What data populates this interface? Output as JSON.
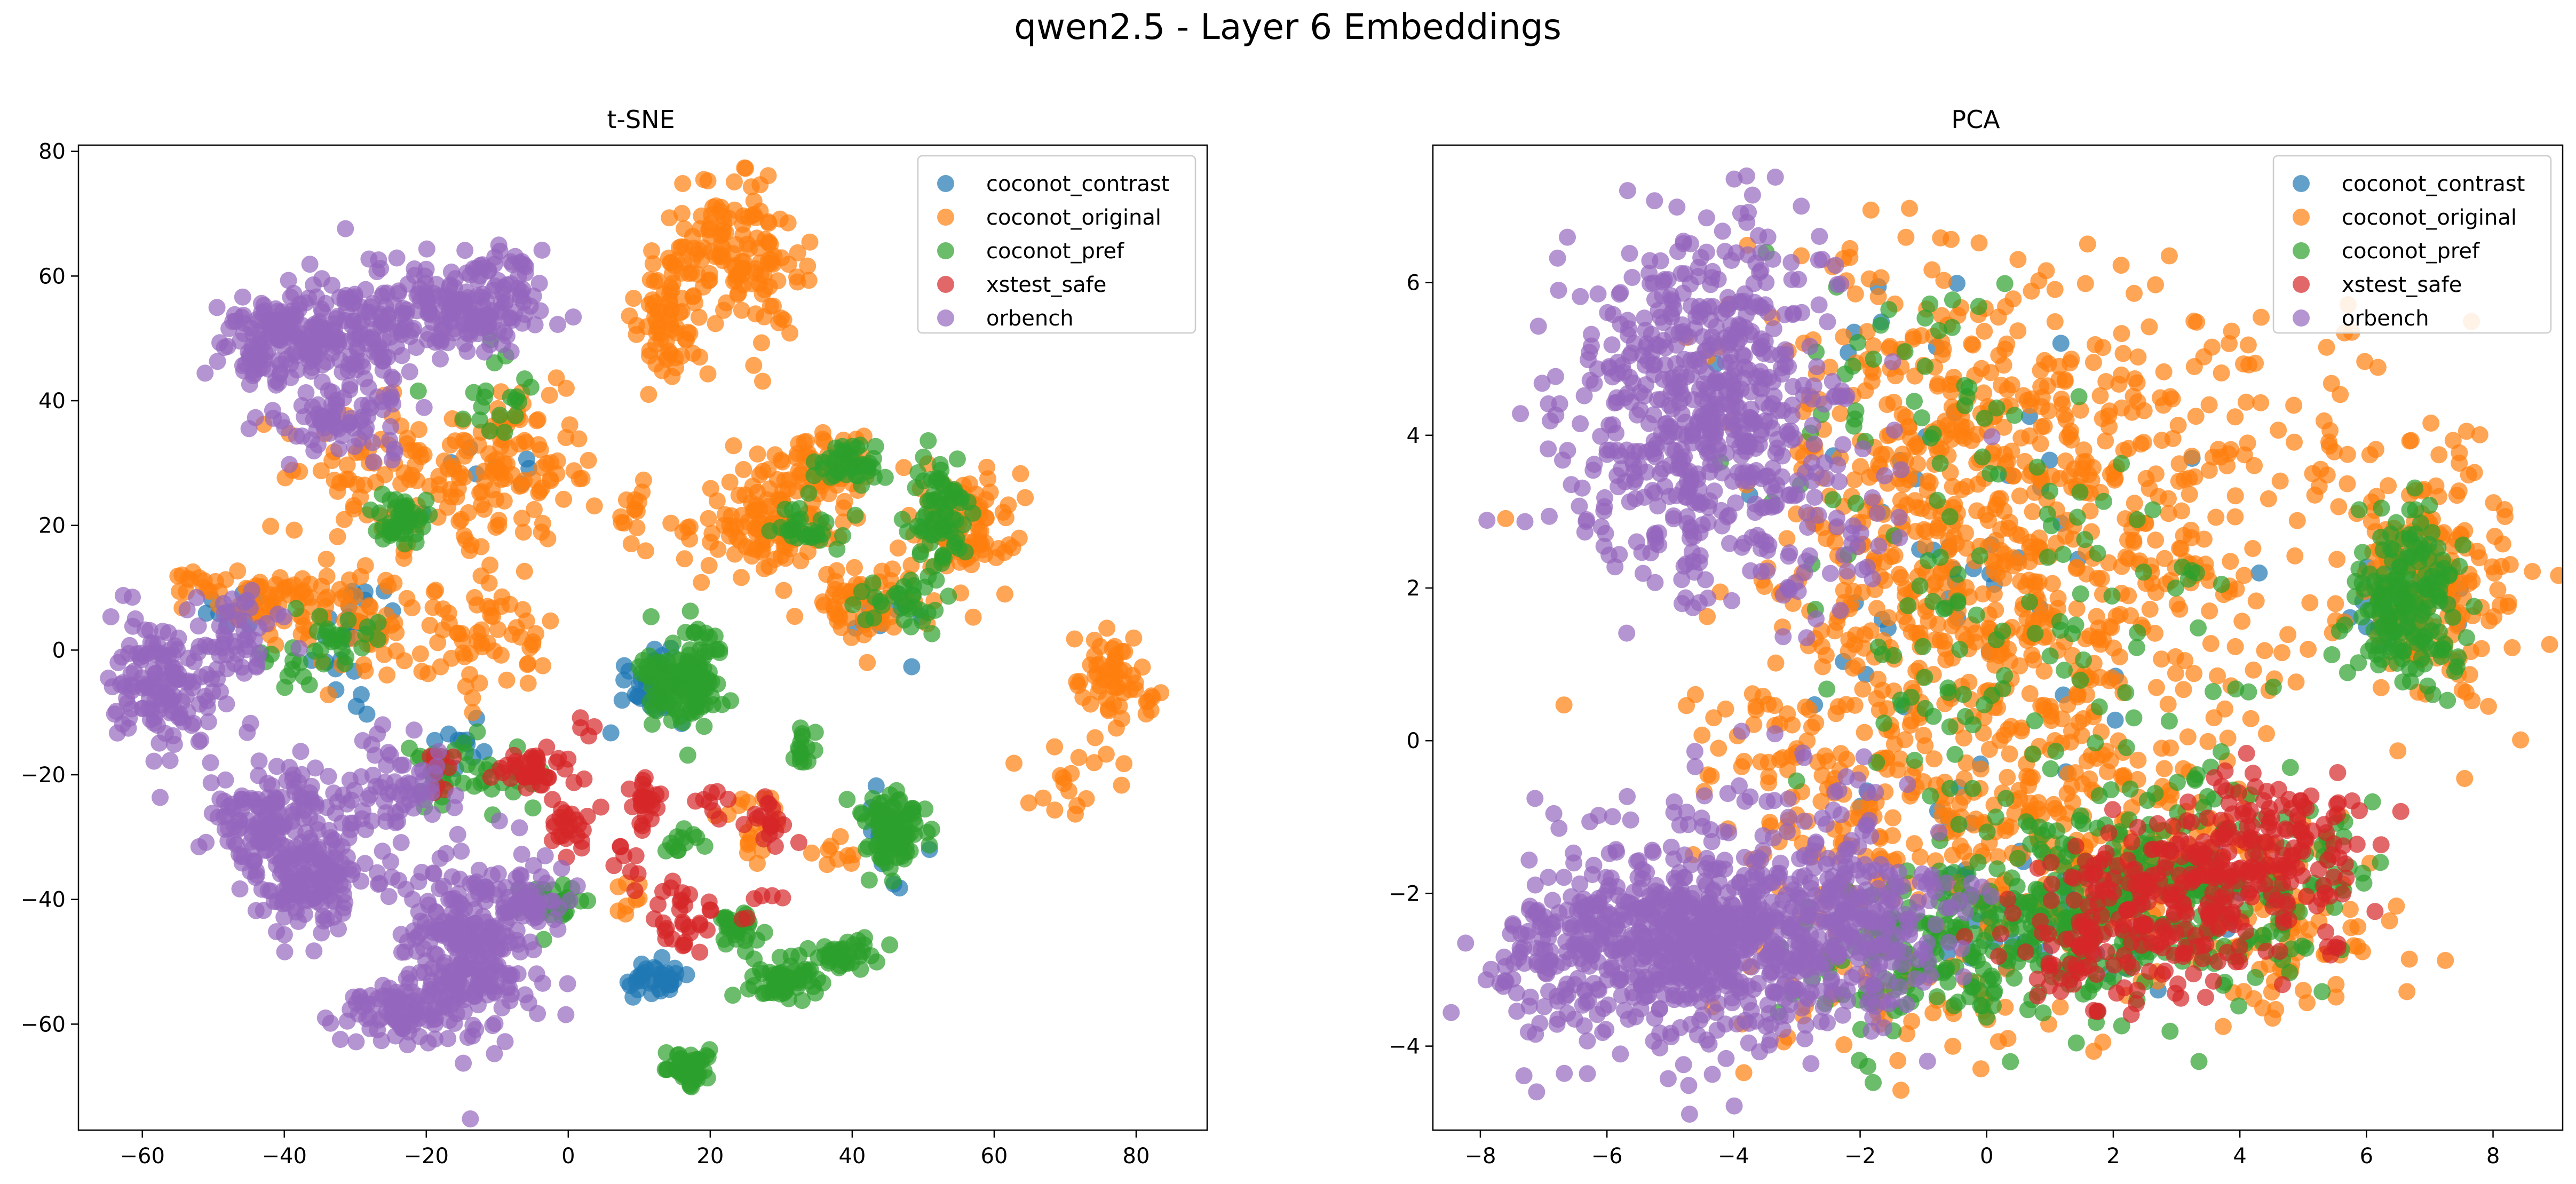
{
  "figure": {
    "suptitle": "qwen2.5 - Layer 6 Embeddings"
  },
  "colors": {
    "coconot_contrast": "#1f77b4",
    "coconot_original": "#ff7f0e",
    "coconot_pref": "#2ca02c",
    "xstest_safe": "#d62728",
    "orbench": "#9467bd"
  },
  "chart_data": [
    {
      "type": "scatter",
      "title": "t-SNE",
      "xlabel": "",
      "ylabel": "",
      "xlim": [
        -69,
        90
      ],
      "ylim": [
        -77,
        81
      ],
      "xticks": [
        -60,
        -40,
        -20,
        0,
        20,
        40,
        60,
        80
      ],
      "yticks": [
        -60,
        -40,
        -20,
        0,
        20,
        40,
        60,
        80
      ],
      "grid": false,
      "legend": {
        "position": "top-right",
        "entries": [
          "coconot_contrast",
          "coconot_original",
          "coconot_pref",
          "xstest_safe",
          "orbench"
        ]
      },
      "alpha": 0.7,
      "series": [
        {
          "name": "coconot_contrast",
          "color": "#1f77b4",
          "clusters": [
            {
              "cx": 12,
              "cy": -53,
              "sx": 2.5,
              "sy": 1.5,
              "n": 35
            },
            {
              "cx": 12,
              "cy": -5,
              "sx": 3,
              "sy": 3,
              "n": 40
            },
            {
              "cx": -30,
              "cy": 3,
              "sx": 3,
              "sy": 5,
              "n": 25
            },
            {
              "cx": -14,
              "cy": -15,
              "sx": 2,
              "sy": 2,
              "n": 10
            },
            {
              "cx": -47,
              "cy": 5,
              "sx": 2,
              "sy": 2,
              "n": 8
            },
            {
              "cx": -10,
              "cy": 30,
              "sx": 4,
              "sy": 4,
              "n": 8
            },
            {
              "cx": 45,
              "cy": 5,
              "sx": 4,
              "sy": 4,
              "n": 10
            },
            {
              "cx": 45,
              "cy": -30,
              "sx": 3,
              "sy": 3,
              "n": 10
            }
          ]
        },
        {
          "name": "coconot_original",
          "color": "#ff7f0e",
          "clusters": [
            {
              "cx": 23,
              "cy": 62,
              "sx": 5,
              "sy": 6,
              "n": 150
            },
            {
              "cx": 14,
              "cy": 54,
              "sx": 3,
              "sy": 5,
              "n": 60
            },
            {
              "cx": 28,
              "cy": 20,
              "sx": 5,
              "sy": 4,
              "n": 110
            },
            {
              "cx": 55,
              "cy": 20,
              "sx": 4,
              "sy": 5,
              "n": 100
            },
            {
              "cx": 42,
              "cy": 7,
              "sx": 4,
              "sy": 3,
              "n": 60
            },
            {
              "cx": 35,
              "cy": 30,
              "sx": 4,
              "sy": 3,
              "n": 60
            },
            {
              "cx": -8,
              "cy": 30,
              "sx": 6,
              "sy": 7,
              "n": 120
            },
            {
              "cx": -28,
              "cy": 28,
              "sx": 6,
              "sy": 5,
              "n": 60
            },
            {
              "cx": -40,
              "cy": 8,
              "sx": 4,
              "sy": 3,
              "n": 60
            },
            {
              "cx": -12,
              "cy": 2,
              "sx": 5,
              "sy": 4,
              "n": 60
            },
            {
              "cx": -28,
              "cy": 4,
              "sx": 5,
              "sy": 5,
              "n": 50
            },
            {
              "cx": 77,
              "cy": -5,
              "sx": 2.5,
              "sy": 4,
              "n": 60
            },
            {
              "cx": 70,
              "cy": -22,
              "sx": 5,
              "sy": 4,
              "n": 18
            },
            {
              "cx": 10,
              "cy": 22,
              "sx": 3,
              "sy": 3,
              "n": 15
            },
            {
              "cx": -52,
              "cy": 10,
              "sx": 2,
              "sy": 2,
              "n": 15
            },
            {
              "cx": 27,
              "cy": -28,
              "sx": 3,
              "sy": 3,
              "n": 20
            },
            {
              "cx": 38,
              "cy": -33,
              "sx": 2,
              "sy": 2,
              "n": 8
            },
            {
              "cx": 8,
              "cy": -38,
              "sx": 2,
              "sy": 2,
              "n": 8
            }
          ]
        },
        {
          "name": "coconot_pref",
          "color": "#2ca02c",
          "clusters": [
            {
              "cx": 16,
              "cy": -4,
              "sx": 3,
              "sy": 4,
              "n": 140
            },
            {
              "cx": 46,
              "cy": -29,
              "sx": 2.5,
              "sy": 3,
              "n": 90
            },
            {
              "cx": 31,
              "cy": -53,
              "sx": 2.5,
              "sy": 2,
              "n": 60
            },
            {
              "cx": 17,
              "cy": -67,
              "sx": 2,
              "sy": 1.5,
              "n": 50
            },
            {
              "cx": 39,
              "cy": -49,
              "sx": 2,
              "sy": 1.2,
              "n": 35
            },
            {
              "cx": 24,
              "cy": -45,
              "sx": 1.5,
              "sy": 1.5,
              "n": 28
            },
            {
              "cx": 33,
              "cy": -16,
              "sx": 1,
              "sy": 1.5,
              "n": 15
            },
            {
              "cx": 52,
              "cy": 22,
              "sx": 2,
              "sy": 4,
              "n": 70
            },
            {
              "cx": 40,
              "cy": 30,
              "sx": 3,
              "sy": 2,
              "n": 40
            },
            {
              "cx": 47,
              "cy": 8,
              "sx": 3,
              "sy": 2,
              "n": 30
            },
            {
              "cx": 33,
              "cy": 20,
              "sx": 3,
              "sy": 2,
              "n": 30
            },
            {
              "cx": -24,
              "cy": 21,
              "sx": 2,
              "sy": 2,
              "n": 45
            },
            {
              "cx": -15,
              "cy": -20,
              "sx": 4,
              "sy": 2.5,
              "n": 45
            },
            {
              "cx": -2,
              "cy": -40,
              "sx": 2.5,
              "sy": 2,
              "n": 25
            },
            {
              "cx": -10,
              "cy": 40,
              "sx": 3,
              "sy": 3,
              "n": 20
            },
            {
              "cx": -32,
              "cy": 2,
              "sx": 4,
              "sy": 3,
              "n": 25
            },
            {
              "cx": -40,
              "cy": -3,
              "sx": 2,
              "sy": 2,
              "n": 10
            },
            {
              "cx": 16,
              "cy": -31,
              "sx": 1.5,
              "sy": 1.5,
              "n": 12
            }
          ]
        },
        {
          "name": "xstest_safe",
          "color": "#d62728",
          "clusters": [
            {
              "cx": -5,
              "cy": -19,
              "sx": 2.5,
              "sy": 1.5,
              "n": 40
            },
            {
              "cx": 0,
              "cy": -28,
              "sx": 1.5,
              "sy": 2,
              "n": 25
            },
            {
              "cx": 11,
              "cy": -24,
              "sx": 1.2,
              "sy": 2,
              "n": 25
            },
            {
              "cx": 16,
              "cy": -43,
              "sx": 2.5,
              "sy": 2.5,
              "n": 30
            },
            {
              "cx": 28,
              "cy": -27,
              "sx": 1.5,
              "sy": 2,
              "n": 20
            },
            {
              "cx": 21,
              "cy": -25,
              "sx": 1.5,
              "sy": 1.5,
              "n": 8
            },
            {
              "cx": -18,
              "cy": -19,
              "sx": 2,
              "sy": 2,
              "n": 10
            },
            {
              "cx": 8,
              "cy": -35,
              "sx": 1.5,
              "sy": 2,
              "n": 8
            },
            {
              "cx": 25,
              "cy": -42,
              "sx": 2,
              "sy": 2,
              "n": 6
            },
            {
              "cx": 3,
              "cy": -12,
              "sx": 1,
              "sy": 1,
              "n": 4
            }
          ]
        },
        {
          "name": "orbench",
          "color": "#9467bd",
          "clusters": [
            {
              "cx": -40,
              "cy": 50,
              "sx": 4,
              "sy": 4,
              "n": 150
            },
            {
              "cx": -28,
              "cy": 52,
              "sx": 5,
              "sy": 5,
              "n": 120
            },
            {
              "cx": -14,
              "cy": 55,
              "sx": 5,
              "sy": 4,
              "n": 150
            },
            {
              "cx": -32,
              "cy": 38,
              "sx": 5,
              "sy": 4,
              "n": 80
            },
            {
              "cx": -56,
              "cy": -6,
              "sx": 4,
              "sy": 6,
              "n": 150
            },
            {
              "cx": -46,
              "cy": 2,
              "sx": 3,
              "sy": 4,
              "n": 40
            },
            {
              "cx": -42,
              "cy": -27,
              "sx": 4,
              "sy": 4,
              "n": 140
            },
            {
              "cx": -36,
              "cy": -37,
              "sx": 5,
              "sy": 4,
              "n": 140
            },
            {
              "cx": -25,
              "cy": -22,
              "sx": 4,
              "sy": 4,
              "n": 60
            },
            {
              "cx": -14,
              "cy": -48,
              "sx": 5,
              "sy": 7,
              "n": 280
            },
            {
              "cx": -24,
              "cy": -58,
              "sx": 4,
              "sy": 3,
              "n": 80
            },
            {
              "cx": -5,
              "cy": -42,
              "sx": 3,
              "sy": 3,
              "n": 40
            },
            {
              "cx": -8,
              "cy": 60,
              "sx": 2,
              "sy": 2,
              "n": 12
            }
          ]
        }
      ]
    },
    {
      "type": "scatter",
      "title": "PCA",
      "xlabel": "",
      "ylabel": "",
      "xlim": [
        -8.75,
        9.1
      ],
      "ylim": [
        -5.1,
        7.8
      ],
      "xticks": [
        -8,
        -6,
        -4,
        -2,
        0,
        2,
        4,
        6,
        8
      ],
      "yticks": [
        -4,
        -2,
        0,
        2,
        4,
        6
      ],
      "grid": false,
      "legend": {
        "position": "top-right",
        "entries": [
          "coconot_contrast",
          "coconot_original",
          "coconot_pref",
          "xstest_safe",
          "orbench"
        ]
      },
      "alpha": 0.7,
      "series": [
        {
          "name": "coconot_contrast",
          "color": "#1f77b4",
          "clusters": [
            {
              "cx": 1.2,
              "cy": -2.2,
              "sx": 1.5,
              "sy": 0.6,
              "n": 60
            },
            {
              "cx": 0,
              "cy": 1.2,
              "sx": 1.8,
              "sy": 1.5,
              "n": 40
            },
            {
              "cx": 6.7,
              "cy": 1.8,
              "sx": 0.5,
              "sy": 0.5,
              "n": 20
            },
            {
              "cx": -1.5,
              "cy": 3.5,
              "sx": 1.2,
              "sy": 1.2,
              "n": 15
            }
          ]
        },
        {
          "name": "coconot_original",
          "color": "#ff7f0e",
          "clusters": [
            {
              "cx": 0.5,
              "cy": 1.5,
              "sx": 1.8,
              "sy": 1.5,
              "n": 500
            },
            {
              "cx": -1,
              "cy": 4,
              "sx": 1.5,
              "sy": 1.2,
              "n": 260
            },
            {
              "cx": 2.5,
              "cy": 3.5,
              "sx": 1.5,
              "sy": 1.2,
              "n": 120
            },
            {
              "cx": 7,
              "cy": 2.2,
              "sx": 0.7,
              "sy": 0.8,
              "n": 220
            },
            {
              "cx": 1.5,
              "cy": -1.5,
              "sx": 1.8,
              "sy": 0.8,
              "n": 240
            },
            {
              "cx": 4.5,
              "cy": -2.5,
              "sx": 1,
              "sy": 0.5,
              "n": 80
            },
            {
              "cx": -2.5,
              "cy": -0.5,
              "sx": 1.2,
              "sy": 1.2,
              "n": 120
            },
            {
              "cx": -1,
              "cy": -3.5,
              "sx": 1.5,
              "sy": 0.5,
              "n": 50
            },
            {
              "cx": 5,
              "cy": 4.5,
              "sx": 1.2,
              "sy": 0.8,
              "n": 25
            }
          ]
        },
        {
          "name": "coconot_pref",
          "color": "#2ca02c",
          "clusters": [
            {
              "cx": 6.6,
              "cy": 1.8,
              "sx": 0.4,
              "sy": 0.6,
              "n": 180
            },
            {
              "cx": 3,
              "cy": -2,
              "sx": 1.5,
              "sy": 0.7,
              "n": 250
            },
            {
              "cx": 0.5,
              "cy": -2.5,
              "sx": 1.3,
              "sy": 0.6,
              "n": 200
            },
            {
              "cx": -1.5,
              "cy": -3,
              "sx": 0.8,
              "sy": 0.5,
              "n": 60
            },
            {
              "cx": 0.5,
              "cy": 1.2,
              "sx": 1.8,
              "sy": 1.3,
              "n": 110
            },
            {
              "cx": -1.5,
              "cy": 4.5,
              "sx": 1,
              "sy": 1,
              "n": 40
            }
          ]
        },
        {
          "name": "xstest_safe",
          "color": "#d62728",
          "clusters": [
            {
              "cx": 3.3,
              "cy": -2,
              "sx": 1.2,
              "sy": 0.5,
              "n": 220
            },
            {
              "cx": 4.5,
              "cy": -1.3,
              "sx": 0.7,
              "sy": 0.4,
              "n": 100
            },
            {
              "cx": 1.8,
              "cy": -2.8,
              "sx": 0.7,
              "sy": 0.4,
              "n": 80
            }
          ]
        },
        {
          "name": "orbench",
          "color": "#9467bd",
          "clusters": [
            {
              "cx": -4.5,
              "cy": 4.5,
              "sx": 1.1,
              "sy": 1.1,
              "n": 520
            },
            {
              "cx": -3.5,
              "cy": 3,
              "sx": 1,
              "sy": 0.8,
              "n": 120
            },
            {
              "cx": -4.5,
              "cy": -2.6,
              "sx": 1.3,
              "sy": 0.6,
              "n": 650
            },
            {
              "cx": -2,
              "cy": -2.5,
              "sx": 0.8,
              "sy": 0.6,
              "n": 200
            },
            {
              "cx": -6.8,
              "cy": -2.8,
              "sx": 0.6,
              "sy": 0.7,
              "n": 90
            },
            {
              "cx": -3,
              "cy": -1,
              "sx": 1.2,
              "sy": 0.6,
              "n": 60
            }
          ]
        }
      ]
    }
  ]
}
